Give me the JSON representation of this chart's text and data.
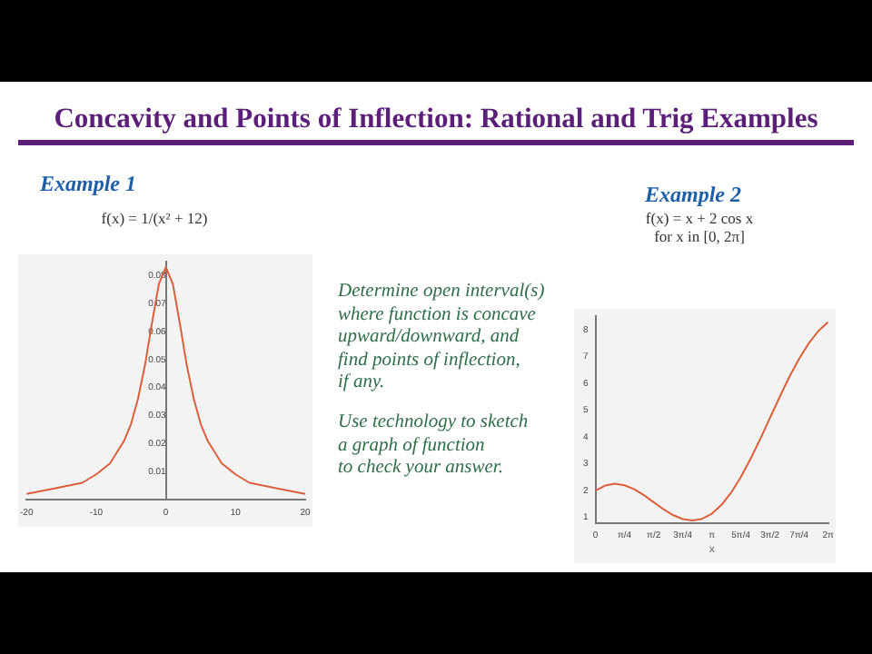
{
  "chart_data": [
    {
      "type": "other",
      "title": "Concavity and Points of Inflection: Rational and Trig Examples",
      "annotations": [
        "Determine open interval(s)\nwhere function is concave\nupward/downward, and\nfind points of inflection,\nif any.",
        "Use technology to sketch\na graph of function\nto check your answer."
      ]
    },
    {
      "type": "line",
      "title": "Example 1",
      "subtitle": "f(x) = 1/(x² + 12)",
      "marker": "none",
      "color": "#d9603b",
      "x": [
        -20,
        -16,
        -12,
        -10,
        -8,
        -6,
        -5,
        -4,
        -3,
        -2,
        -1,
        0,
        1,
        2,
        3,
        4,
        5,
        6,
        8,
        10,
        12,
        16,
        20
      ],
      "values": [
        0.002,
        0.004,
        0.006,
        0.009,
        0.013,
        0.021,
        0.027,
        0.036,
        0.048,
        0.063,
        0.077,
        0.083,
        0.077,
        0.063,
        0.048,
        0.036,
        0.027,
        0.021,
        0.013,
        0.009,
        0.006,
        0.004,
        0.002
      ],
      "xlim": [
        -20,
        20
      ],
      "xticks": [
        -20,
        -10,
        0,
        10,
        20
      ],
      "ylim": [
        0,
        0.085
      ],
      "yticks": [
        0.01,
        0.02,
        0.03,
        0.04,
        0.05,
        0.06,
        0.07,
        0.08
      ]
    },
    {
      "type": "line",
      "title": "Example 2",
      "subtitle": "f(x) = x + 2 cos x\nfor x in [0, 2π]",
      "xlabel": "x",
      "marker": "none",
      "color": "#d9603b",
      "x": [
        0,
        0.262,
        0.524,
        0.785,
        1.047,
        1.309,
        1.571,
        1.833,
        2.094,
        2.356,
        2.618,
        2.88,
        3.142,
        3.403,
        3.665,
        3.927,
        4.189,
        4.451,
        4.712,
        4.974,
        5.236,
        5.498,
        5.76,
        6.021,
        6.283
      ],
      "values": [
        2,
        2.19,
        2.26,
        2.2,
        2.05,
        1.83,
        1.57,
        1.31,
        1.09,
        0.94,
        0.89,
        0.95,
        1.14,
        1.47,
        1.93,
        2.51,
        3.19,
        3.93,
        4.71,
        5.49,
        6.24,
        6.91,
        7.49,
        7.95,
        8.28
      ],
      "xlim": [
        0,
        6.283
      ],
      "xticks": [
        0,
        {
          "value": 0.785,
          "label": "π/4"
        },
        {
          "value": 1.571,
          "label": "π/2"
        },
        {
          "value": 2.356,
          "label": "3π/4"
        },
        {
          "value": 3.142,
          "label": "π"
        },
        {
          "value": 3.927,
          "label": "5π/4"
        },
        {
          "value": 4.712,
          "label": "3π/2"
        },
        {
          "value": 5.498,
          "label": "7π/4"
        },
        {
          "value": 6.283,
          "label": "2π"
        }
      ],
      "ylim": [
        0.8,
        8.5
      ],
      "yticks": [
        1,
        2,
        3,
        4,
        5,
        6,
        7,
        8
      ]
    }
  ]
}
